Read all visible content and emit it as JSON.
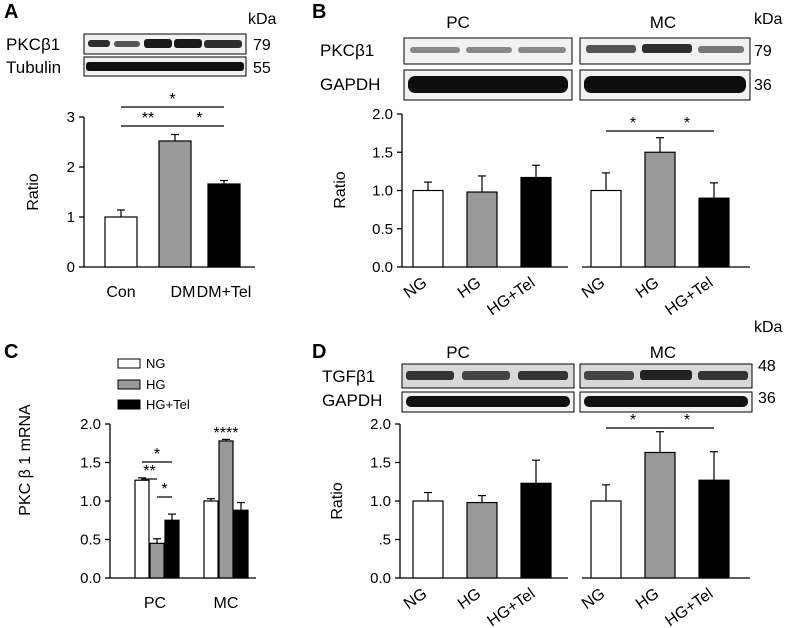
{
  "panels": {
    "A": {
      "letter": "A",
      "blot": {
        "labels": [
          "PKCβ1",
          "Tubulin"
        ],
        "kda_header": "kDa",
        "kda": [
          "79",
          "55"
        ]
      }
    },
    "B": {
      "letter": "B",
      "blot": {
        "labels": [
          "PKCβ1",
          "GAPDH"
        ],
        "groups": [
          "PC",
          "MC"
        ],
        "kda_header": "kDa",
        "kda": [
          "79",
          "36"
        ]
      }
    },
    "C": {
      "letter": "C",
      "legend": [
        "NG",
        "HG",
        "HG+Tel"
      ]
    },
    "D": {
      "letter": "D",
      "blot": {
        "labels": [
          "TGFβ1",
          "GAPDH"
        ],
        "groups": [
          "PC",
          "MC"
        ],
        "kda_header": "kDa",
        "kda": [
          "48",
          "36"
        ]
      }
    }
  },
  "colors": {
    "white_bar": "#ffffff",
    "gray_bar": "#999999",
    "black_bar": "#000000"
  },
  "chart_data": [
    {
      "panel": "A",
      "type": "bar",
      "categories": [
        "Con",
        "DM",
        "DM+Tel"
      ],
      "values": [
        1.0,
        2.52,
        1.66
      ],
      "errors": [
        0.14,
        0.13,
        0.07
      ],
      "bar_colors": [
        "#ffffff",
        "#999999",
        "#000000"
      ],
      "ylabel": "Ratio",
      "ylim": [
        0,
        3
      ],
      "yticks": [
        "0",
        "1",
        "2",
        "3"
      ],
      "significance": [
        {
          "from": 0,
          "to": 1,
          "label": "**"
        },
        {
          "from": 1,
          "to": 2,
          "label": "*"
        },
        {
          "from": 0,
          "to": 2,
          "label": "*"
        }
      ]
    },
    {
      "panel": "B",
      "type": "bar",
      "groups": [
        "PC",
        "MC"
      ],
      "categories": [
        "NG",
        "HG",
        "HG+Tel"
      ],
      "series": [
        {
          "values": [
            1.0,
            0.98,
            1.17
          ],
          "errors": [
            0.11,
            0.21,
            0.16
          ]
        },
        {
          "values": [
            1.0,
            1.5,
            0.9
          ],
          "errors": [
            0.23,
            0.19,
            0.2
          ]
        }
      ],
      "bar_colors": [
        "#ffffff",
        "#999999",
        "#000000"
      ],
      "ylabel": "Ratio",
      "ylim": [
        0,
        2
      ],
      "yticks": [
        "0.0",
        "0.5",
        "1.0",
        "1.5",
        "2.0"
      ],
      "significance": [
        {
          "group": 1,
          "from": 0,
          "to": 1,
          "label": "*"
        },
        {
          "group": 1,
          "from": 1,
          "to": 2,
          "label": "*"
        }
      ]
    },
    {
      "panel": "C",
      "type": "bar",
      "categories": [
        "PC",
        "MC"
      ],
      "series": [
        {
          "name": "NG",
          "values": [
            1.27,
            1.0
          ],
          "errors": [
            0.03,
            0.03
          ]
        },
        {
          "name": "HG",
          "values": [
            0.45,
            1.78
          ],
          "errors": [
            0.06,
            0.02
          ]
        },
        {
          "name": "HG+Tel",
          "values": [
            0.75,
            0.88
          ],
          "errors": [
            0.08,
            0.1
          ]
        }
      ],
      "bar_colors": [
        "#ffffff",
        "#999999",
        "#000000"
      ],
      "ylabel": "PKC β 1 mRNA",
      "ylim": [
        0,
        2
      ],
      "yticks": [
        "0.0",
        "0.5",
        "1.0",
        "1.5",
        "2.0"
      ],
      "significance": [
        {
          "group": 0,
          "from": 0,
          "to": 2,
          "label": "*"
        },
        {
          "group": 0,
          "from": 0,
          "to": 1,
          "label": "**"
        },
        {
          "group": 0,
          "from": 1,
          "to": 2,
          "label": "*"
        },
        {
          "group": 1,
          "label": "****"
        }
      ]
    },
    {
      "panel": "D",
      "type": "bar",
      "groups": [
        "PC",
        "MC"
      ],
      "categories": [
        "NG",
        "HG",
        "HG+Tel"
      ],
      "series": [
        {
          "values": [
            1.0,
            0.98,
            1.23
          ],
          "errors": [
            0.11,
            0.09,
            0.3
          ]
        },
        {
          "values": [
            1.0,
            1.63,
            1.27
          ],
          "errors": [
            0.21,
            0.27,
            0.37
          ]
        }
      ],
      "bar_colors": [
        "#ffffff",
        "#999999",
        "#000000"
      ],
      "ylabel": "Ratio",
      "ylim": [
        0,
        2
      ],
      "yticks": [
        "0.0",
        ".5",
        "1.0",
        "1.5",
        "2.0"
      ],
      "significance": [
        {
          "group": 1,
          "from": 0,
          "to": 1,
          "label": "*"
        },
        {
          "group": 1,
          "from": 1,
          "to": 2,
          "label": "*"
        }
      ]
    }
  ]
}
